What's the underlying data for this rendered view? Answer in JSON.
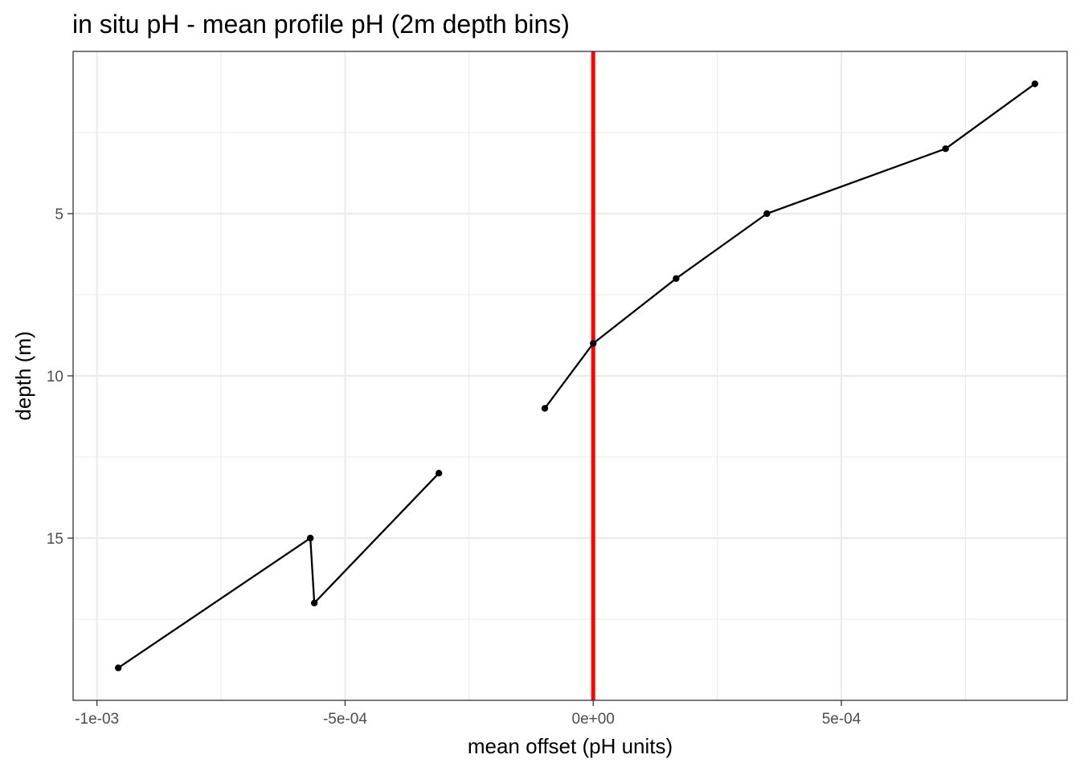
{
  "chart_data": {
    "type": "line",
    "title": "in situ pH - mean profile pH (2m depth bins)",
    "xlabel": "mean offset (pH units)",
    "ylabel": "depth (m)",
    "xlim": [
      -0.001048,
      0.000955
    ],
    "ylim": [
      20.0,
      0.0
    ],
    "y_reversed": true,
    "x_ticks": [
      -0.001,
      -0.0005,
      0.0,
      0.0005
    ],
    "x_tick_labels": [
      "-1e-03",
      "-5e-04",
      "0e+00",
      "5e-04"
    ],
    "y_ticks": [
      5,
      10,
      15
    ],
    "y_tick_labels": [
      "5",
      "10",
      "15"
    ],
    "grid": true,
    "reference_line": {
      "x": 0.0,
      "color": "#ff0000"
    },
    "segments": [
      {
        "points": [
          {
            "x": 0.00089,
            "depth": 1
          },
          {
            "x": 0.00071,
            "depth": 3
          },
          {
            "x": 0.00035,
            "depth": 5
          },
          {
            "x": 0.000167,
            "depth": 7
          },
          {
            "x": 0.0,
            "depth": 9
          },
          {
            "x": -9.75e-05,
            "depth": 11
          }
        ]
      },
      {
        "points": [
          {
            "x": -0.000311,
            "depth": 13
          },
          {
            "x": -0.000562,
            "depth": 17
          },
          {
            "x": -0.00057,
            "depth": 15
          },
          {
            "x": -0.000957,
            "depth": 19
          }
        ]
      }
    ],
    "line_color": "#000000",
    "point_color": "#000000"
  }
}
